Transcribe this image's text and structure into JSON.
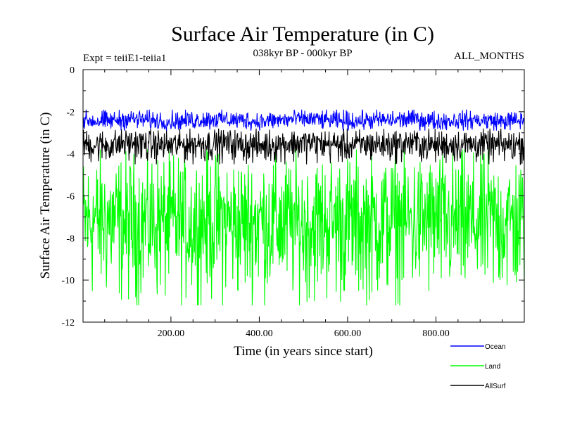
{
  "chart_data": {
    "type": "line",
    "title": "Surface Air Temperature (in C)",
    "subtitle": "038kyr BP - 000kyr BP",
    "left_note": "Expt = teiiE1-teiia1",
    "right_note": "ALL_MONTHS",
    "xlabel": "Time (in years since start)",
    "ylabel": "Surface Air Temperature (in C)",
    "xlim": [
      1,
      1000
    ],
    "ylim": [
      -12,
      0
    ],
    "xticks": [
      200,
      400,
      600,
      800
    ],
    "xtick_labels": [
      "200.00",
      "400.00",
      "600.00",
      "800.00"
    ],
    "yticks": [
      0,
      -2,
      -4,
      -6,
      -8,
      -10,
      -12
    ],
    "ytick_labels": [
      "0",
      "-2",
      "-4",
      "-6",
      "-8",
      "-10",
      "-12"
    ],
    "grid": false,
    "legend_position": "bottom-right",
    "series": [
      {
        "name": "Ocean",
        "color": "#0000ff",
        "x_samples": [
          1,
          50,
          100,
          150,
          200,
          250,
          300,
          350,
          400,
          450,
          500,
          550,
          600,
          650,
          700,
          750,
          800,
          850,
          900,
          950,
          1000
        ],
        "values": [
          -2.4,
          -2.5,
          -2.3,
          -2.4,
          -2.5,
          -2.4,
          -2.3,
          -2.4,
          -2.5,
          -2.4,
          -2.3,
          -2.4,
          -2.5,
          -2.4,
          -2.4,
          -2.3,
          -2.5,
          -2.4,
          -2.4,
          -2.5,
          -2.4
        ],
        "range": [
          -2.9,
          -1.9
        ]
      },
      {
        "name": "Land",
        "color": "#00ff00",
        "x_samples": [
          1,
          50,
          100,
          150,
          200,
          250,
          300,
          350,
          400,
          450,
          500,
          550,
          600,
          650,
          700,
          750,
          800,
          850,
          900,
          950,
          1000
        ],
        "values": [
          -7.2,
          -7.0,
          -7.4,
          -7.1,
          -7.3,
          -7.2,
          -7.0,
          -7.3,
          -7.1,
          -7.2,
          -7.4,
          -7.1,
          -7.2,
          -7.3,
          -7.0,
          -7.2,
          -7.1,
          -7.3,
          -7.2,
          -7.1,
          -7.2
        ],
        "range": [
          -11.2,
          -3.8
        ]
      },
      {
        "name": "AllSurf",
        "color": "#000000",
        "x_samples": [
          1,
          50,
          100,
          150,
          200,
          250,
          300,
          350,
          400,
          450,
          500,
          550,
          600,
          650,
          700,
          750,
          800,
          850,
          900,
          950,
          1000
        ],
        "values": [
          -3.5,
          -3.6,
          -3.4,
          -3.5,
          -3.6,
          -3.5,
          -3.4,
          -3.5,
          -3.6,
          -3.5,
          -3.4,
          -3.5,
          -3.6,
          -3.5,
          -3.5,
          -3.4,
          -3.6,
          -3.5,
          -3.5,
          -3.6,
          -3.5
        ],
        "range": [
          -4.5,
          -2.8
        ]
      }
    ]
  }
}
